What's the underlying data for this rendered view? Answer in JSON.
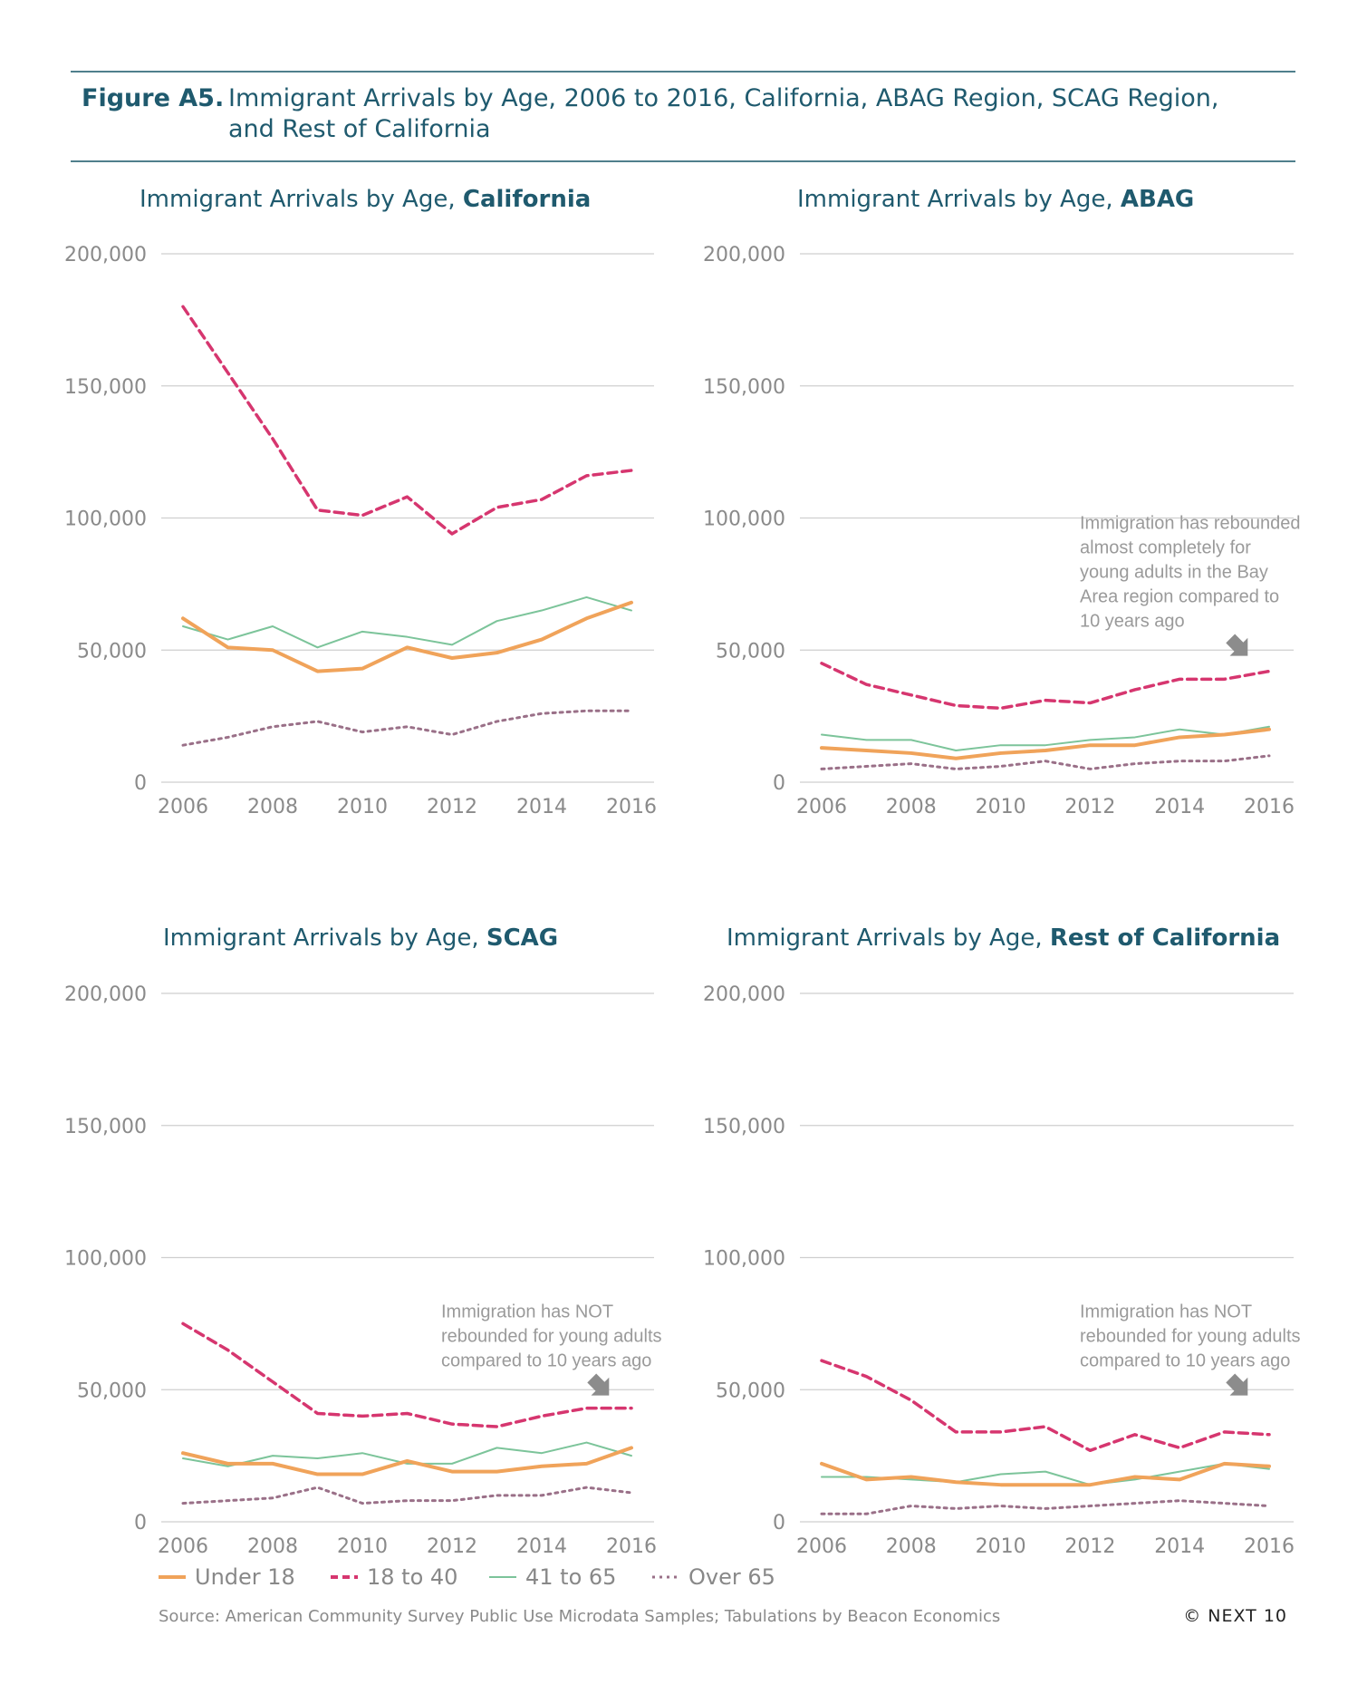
{
  "header": {
    "label": "Figure A5.",
    "title_line1": "Immigrant Arrivals by Age, 2006 to 2016, California, ABAG Region, SCAG Region,",
    "title_line2": "and Rest of California"
  },
  "colors": {
    "under18": "#f0a35a",
    "age18to40": "#d6366f",
    "age41to65": "#7cc49a",
    "over65": "#9a7088",
    "grid": "#cfcfcf",
    "tick": "#8a8a8a",
    "annotation": "#9a9a9a",
    "arrow": "#8c8c8c"
  },
  "legend": {
    "under18": "Under 18",
    "age18to40": "18 to 40",
    "age41to65": "41 to 65",
    "over65": "Over 65"
  },
  "footer": {
    "source": "Source: American Community Survey Public Use Microdata Samples; Tabulations by Beacon Economics",
    "credit": "© NEXT 10"
  },
  "panels": [
    {
      "title_prefix": "Immigrant Arrivals by Age, ",
      "title_bold": "California"
    },
    {
      "title_prefix": "Immigrant Arrivals by Age, ",
      "title_bold": "ABAG"
    },
    {
      "title_prefix": "Immigrant Arrivals by Age, ",
      "title_bold": "SCAG"
    },
    {
      "title_prefix": "Immigrant Arrivals by Age, ",
      "title_bold": "Rest of California"
    }
  ],
  "chart_data": [
    {
      "type": "line",
      "title": "Immigrant Arrivals by Age, California",
      "x": [
        2006,
        2007,
        2008,
        2009,
        2010,
        2011,
        2012,
        2013,
        2014,
        2015,
        2016
      ],
      "x_ticks": [
        "2006",
        "2008",
        "2010",
        "2012",
        "2014",
        "2016"
      ],
      "y_ticks": [
        "0",
        "50,000",
        "100,000",
        "150,000",
        "200,000"
      ],
      "ylim": [
        0,
        200000
      ],
      "grid": true,
      "series": [
        {
          "name": "Under 18",
          "key": "under18",
          "values": [
            62000,
            51000,
            50000,
            42000,
            43000,
            51000,
            47000,
            49000,
            54000,
            62000,
            68000
          ]
        },
        {
          "name": "18 to 40",
          "key": "age18to40",
          "values": [
            180000,
            155000,
            130000,
            103000,
            101000,
            108000,
            94000,
            104000,
            107000,
            116000,
            118000
          ]
        },
        {
          "name": "41 to 65",
          "key": "age41to65",
          "values": [
            59000,
            54000,
            59000,
            51000,
            57000,
            55000,
            52000,
            61000,
            65000,
            70000,
            65000
          ]
        },
        {
          "name": "Over 65",
          "key": "over65",
          "values": [
            14000,
            17000,
            21000,
            23000,
            19000,
            21000,
            18000,
            23000,
            26000,
            27000,
            27000
          ]
        }
      ]
    },
    {
      "type": "line",
      "title": "Immigrant Arrivals by Age, ABAG",
      "x": [
        2006,
        2007,
        2008,
        2009,
        2010,
        2011,
        2012,
        2013,
        2014,
        2015,
        2016
      ],
      "x_ticks": [
        "2006",
        "2008",
        "2010",
        "2012",
        "2014",
        "2016"
      ],
      "y_ticks": [
        "0",
        "50,000",
        "100,000",
        "150,000",
        "200,000"
      ],
      "ylim": [
        0,
        200000
      ],
      "grid": true,
      "annotation": [
        "Immigration has rebounded",
        "almost completely for",
        "young adults in the Bay",
        "Area region compared to",
        "10 years ago"
      ],
      "series": [
        {
          "name": "Under 18",
          "key": "under18",
          "values": [
            13000,
            12000,
            11000,
            9000,
            11000,
            12000,
            14000,
            14000,
            17000,
            18000,
            20000
          ]
        },
        {
          "name": "18 to 40",
          "key": "age18to40",
          "values": [
            45000,
            37000,
            33000,
            29000,
            28000,
            31000,
            30000,
            35000,
            39000,
            39000,
            42000
          ]
        },
        {
          "name": "41 to 65",
          "key": "age41to65",
          "values": [
            18000,
            16000,
            16000,
            12000,
            14000,
            14000,
            16000,
            17000,
            20000,
            18000,
            21000
          ]
        },
        {
          "name": "Over 65",
          "key": "over65",
          "values": [
            5000,
            6000,
            7000,
            5000,
            6000,
            8000,
            5000,
            7000,
            8000,
            8000,
            10000
          ]
        }
      ]
    },
    {
      "type": "line",
      "title": "Immigrant Arrivals by Age, SCAG",
      "x": [
        2006,
        2007,
        2008,
        2009,
        2010,
        2011,
        2012,
        2013,
        2014,
        2015,
        2016
      ],
      "x_ticks": [
        "2006",
        "2008",
        "2010",
        "2012",
        "2014",
        "2016"
      ],
      "y_ticks": [
        "0",
        "50,000",
        "100,000",
        "150,000",
        "200,000"
      ],
      "ylim": [
        0,
        200000
      ],
      "grid": true,
      "annotation": [
        "Immigration has NOT",
        "rebounded for young adults",
        "compared to 10 years ago"
      ],
      "series": [
        {
          "name": "Under 18",
          "key": "under18",
          "values": [
            26000,
            22000,
            22000,
            18000,
            18000,
            23000,
            19000,
            19000,
            21000,
            22000,
            28000
          ]
        },
        {
          "name": "18 to 40",
          "key": "age18to40",
          "values": [
            75000,
            65000,
            53000,
            41000,
            40000,
            41000,
            37000,
            36000,
            40000,
            43000,
            43000
          ]
        },
        {
          "name": "41 to 65",
          "key": "age41to65",
          "values": [
            24000,
            21000,
            25000,
            24000,
            26000,
            22000,
            22000,
            28000,
            26000,
            30000,
            25000
          ]
        },
        {
          "name": "Over 65",
          "key": "over65",
          "values": [
            7000,
            8000,
            9000,
            13000,
            7000,
            8000,
            8000,
            10000,
            10000,
            13000,
            11000
          ]
        }
      ]
    },
    {
      "type": "line",
      "title": "Immigrant Arrivals by Age, Rest of California",
      "x": [
        2006,
        2007,
        2008,
        2009,
        2010,
        2011,
        2012,
        2013,
        2014,
        2015,
        2016
      ],
      "x_ticks": [
        "2006",
        "2008",
        "2010",
        "2012",
        "2014",
        "2016"
      ],
      "y_ticks": [
        "0",
        "50,000",
        "100,000",
        "150,000",
        "200,000"
      ],
      "ylim": [
        0,
        200000
      ],
      "grid": true,
      "annotation": [
        "Immigration has NOT",
        "rebounded for young adults",
        "compared to 10 years ago"
      ],
      "series": [
        {
          "name": "Under 18",
          "key": "under18",
          "values": [
            22000,
            16000,
            17000,
            15000,
            14000,
            14000,
            14000,
            17000,
            16000,
            22000,
            21000
          ]
        },
        {
          "name": "18 to 40",
          "key": "age18to40",
          "values": [
            61000,
            55000,
            46000,
            34000,
            34000,
            36000,
            27000,
            33000,
            28000,
            34000,
            33000
          ]
        },
        {
          "name": "41 to 65",
          "key": "age41to65",
          "values": [
            17000,
            17000,
            16000,
            15000,
            18000,
            19000,
            14000,
            16000,
            19000,
            22000,
            20000
          ]
        },
        {
          "name": "Over 65",
          "key": "over65",
          "values": [
            3000,
            3000,
            6000,
            5000,
            6000,
            5000,
            6000,
            7000,
            8000,
            7000,
            6000
          ]
        }
      ]
    }
  ]
}
